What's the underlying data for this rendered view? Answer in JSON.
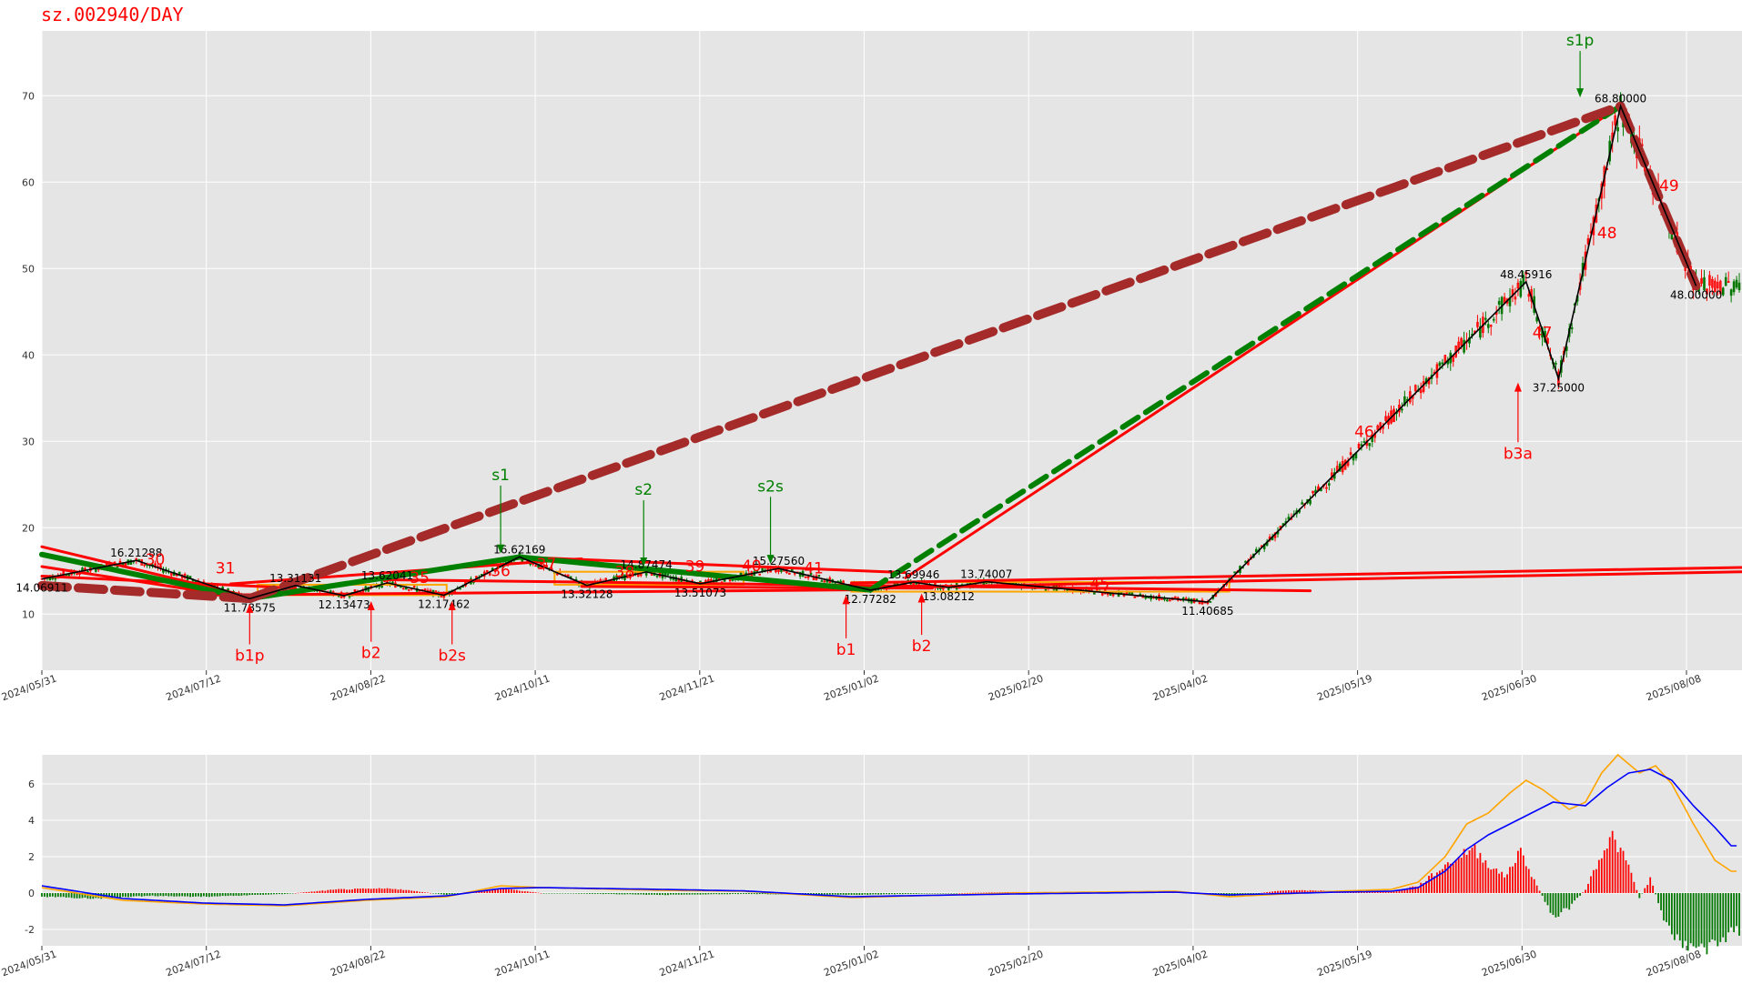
{
  "title": "sz.002940/DAY",
  "colors": {
    "up": "#ff0000",
    "down": "#007700",
    "pen": "#000000",
    "seg": "#ff0000",
    "greenseg": "#008000",
    "brown": "#a52a2a",
    "orange": "#ffa500",
    "dif": "#ffa500",
    "dea": "#0000ff",
    "grid_bg": "#e5e5e5"
  },
  "chart_data": [
    {
      "type": "candlestick",
      "name": "price",
      "x_ticks": [
        "2024/05/31",
        "2024/07/12",
        "2024/08/22",
        "2024/10/11",
        "2024/11/21",
        "2025/01/02",
        "2025/02/20",
        "2025/04/02",
        "2025/05/19",
        "2025/06/30",
        "2025/08/08"
      ],
      "y_ticks": [
        10,
        20,
        30,
        40,
        50,
        60,
        70
      ],
      "ylim": [
        3.5,
        77.5
      ],
      "pen_points": [
        {
          "t": 0,
          "v": 14.06911,
          "label": "14.06911"
        },
        {
          "t": 35,
          "v": 16.21288,
          "label": "16.21288"
        },
        {
          "t": 77,
          "v": 11.78575,
          "label": "11.78575"
        },
        {
          "t": 94,
          "v": 13.31131,
          "label": "13.31131"
        },
        {
          "t": 112,
          "v": 12.13473,
          "label": "12.13473"
        },
        {
          "t": 128,
          "v": 13.62041,
          "label": "13.62041"
        },
        {
          "t": 149,
          "v": 12.17462,
          "label": "12.17462"
        },
        {
          "t": 177,
          "v": 16.62169,
          "label": "16.62169"
        },
        {
          "t": 202,
          "v": 13.32128,
          "label": "13.32128"
        },
        {
          "t": 224,
          "v": 14.87474,
          "label": "14.87474"
        },
        {
          "t": 244,
          "v": 13.51073,
          "label": "13.51073"
        },
        {
          "t": 273,
          "v": 15.2756,
          "label": "15.27560"
        },
        {
          "t": 307,
          "v": 12.77282,
          "label": "12.77282"
        },
        {
          "t": 323,
          "v": 13.69946,
          "label": "13.69946"
        },
        {
          "t": 336,
          "v": 13.08212,
          "label": "13.08212"
        },
        {
          "t": 350,
          "v": 13.74007,
          "label": "13.74007"
        },
        {
          "t": 432,
          "v": 11.40685,
          "label": "11.40685"
        },
        {
          "t": 550,
          "v": 48.45916,
          "label": "48.45916"
        },
        {
          "t": 562,
          "v": 37.25,
          "label": "37.25000"
        },
        {
          "t": 585,
          "v": 68.8,
          "label": "68.80000"
        },
        {
          "t": 613,
          "v": 48.0,
          "label": "48.00000"
        }
      ],
      "segment_labels": [
        {
          "t": 42,
          "v": 15.7,
          "label": "30"
        },
        {
          "t": 68,
          "v": 14.7,
          "label": "31"
        },
        {
          "t": 140,
          "v": 13.6,
          "label": "35"
        },
        {
          "t": 170,
          "v": 14.4,
          "label": "36"
        },
        {
          "t": 187,
          "v": 15.2,
          "label": "37"
        },
        {
          "t": 216,
          "v": 14.3,
          "label": "38"
        },
        {
          "t": 242,
          "v": 14.9,
          "label": "39"
        },
        {
          "t": 263,
          "v": 15.0,
          "label": "40"
        },
        {
          "t": 286,
          "v": 14.7,
          "label": "41"
        },
        {
          "t": 392,
          "v": 12.9,
          "label": "45"
        },
        {
          "t": 490,
          "v": 30.5,
          "label": "46"
        },
        {
          "t": 556,
          "v": 42.0,
          "label": "47"
        },
        {
          "t": 580,
          "v": 53.5,
          "label": "48"
        },
        {
          "t": 603,
          "v": 59.0,
          "label": "49"
        }
      ],
      "signals": [
        {
          "t": 77,
          "label": "b1p",
          "kind": "buy",
          "price": 11.2,
          "text_v": 4.6
        },
        {
          "t": 122,
          "label": "b2",
          "kind": "buy",
          "price": 11.5,
          "text_v": 4.9
        },
        {
          "t": 152,
          "label": "b2s",
          "kind": "buy",
          "price": 11.5,
          "text_v": 4.6
        },
        {
          "t": 298,
          "label": "b1",
          "kind": "buy",
          "price": 12.2,
          "text_v": 5.3
        },
        {
          "t": 326,
          "label": "b2",
          "kind": "buy",
          "price": 12.4,
          "text_v": 5.7
        },
        {
          "t": 547,
          "label": "b3a",
          "kind": "buy",
          "price": 36.8,
          "text_v": 28.0
        },
        {
          "t": 170,
          "label": "s1",
          "kind": "sell",
          "price": 17.0,
          "text_v": 25.5
        },
        {
          "t": 223,
          "label": "s2",
          "kind": "sell",
          "price": 15.5,
          "text_v": 23.8
        },
        {
          "t": 270,
          "label": "s2s",
          "kind": "sell",
          "price": 15.8,
          "text_v": 24.2
        },
        {
          "t": 570,
          "label": "s1p",
          "kind": "sell",
          "price": 69.8,
          "text_v": 75.8
        }
      ]
    },
    {
      "type": "macd",
      "name": "indicator",
      "x_ticks": [
        "2024/05/31",
        "2024/07/12",
        "2024/08/22",
        "2024/10/11",
        "2024/11/21",
        "2025/01/02",
        "2025/02/20",
        "2025/04/02",
        "2025/05/19",
        "2025/06/30",
        "2025/08/08"
      ],
      "y_ticks": [
        -2,
        0,
        2,
        4,
        6
      ],
      "ylim": [
        -2.9,
        7.6
      ],
      "dif_knots": [
        [
          0,
          0.3
        ],
        [
          30,
          -0.4
        ],
        [
          60,
          -0.6
        ],
        [
          90,
          -0.7
        ],
        [
          120,
          -0.4
        ],
        [
          150,
          -0.2
        ],
        [
          170,
          0.4
        ],
        [
          185,
          0.3
        ],
        [
          230,
          0.15
        ],
        [
          260,
          0.1
        ],
        [
          300,
          -0.25
        ],
        [
          360,
          0.0
        ],
        [
          420,
          0.1
        ],
        [
          440,
          -0.2
        ],
        [
          480,
          0.1
        ],
        [
          500,
          0.2
        ],
        [
          510,
          0.6
        ],
        [
          520,
          2.0
        ],
        [
          528,
          3.8
        ],
        [
          536,
          4.4
        ],
        [
          544,
          5.5
        ],
        [
          550,
          6.2
        ],
        [
          556,
          5.7
        ],
        [
          566,
          4.6
        ],
        [
          572,
          5.0
        ],
        [
          578,
          6.6
        ],
        [
          584,
          7.6
        ],
        [
          592,
          6.6
        ],
        [
          598,
          7.0
        ],
        [
          604,
          6.0
        ],
        [
          612,
          3.8
        ],
        [
          620,
          1.8
        ],
        [
          626,
          1.2
        ]
      ],
      "dea_knots": [
        [
          0,
          0.4
        ],
        [
          30,
          -0.3
        ],
        [
          60,
          -0.55
        ],
        [
          90,
          -0.65
        ],
        [
          120,
          -0.35
        ],
        [
          150,
          -0.15
        ],
        [
          170,
          0.25
        ],
        [
          185,
          0.3
        ],
        [
          230,
          0.2
        ],
        [
          260,
          0.12
        ],
        [
          300,
          -0.2
        ],
        [
          360,
          -0.05
        ],
        [
          420,
          0.05
        ],
        [
          440,
          -0.1
        ],
        [
          480,
          0.05
        ],
        [
          500,
          0.1
        ],
        [
          510,
          0.3
        ],
        [
          520,
          1.2
        ],
        [
          528,
          2.4
        ],
        [
          536,
          3.2
        ],
        [
          544,
          3.8
        ],
        [
          552,
          4.4
        ],
        [
          560,
          5.0
        ],
        [
          572,
          4.8
        ],
        [
          580,
          5.8
        ],
        [
          588,
          6.6
        ],
        [
          596,
          6.8
        ],
        [
          604,
          6.2
        ],
        [
          612,
          4.8
        ],
        [
          620,
          3.6
        ],
        [
          626,
          2.6
        ]
      ],
      "hist_knots": [
        [
          0,
          -0.2
        ],
        [
          20,
          -0.3
        ],
        [
          40,
          -0.15
        ],
        [
          60,
          -0.2
        ],
        [
          90,
          -0.05
        ],
        [
          110,
          0.2
        ],
        [
          130,
          0.25
        ],
        [
          150,
          -0.1
        ],
        [
          170,
          0.25
        ],
        [
          185,
          0.0
        ],
        [
          230,
          -0.1
        ],
        [
          260,
          -0.05
        ],
        [
          300,
          -0.1
        ],
        [
          360,
          0.05
        ],
        [
          420,
          0.05
        ],
        [
          440,
          -0.2
        ],
        [
          460,
          0.15
        ],
        [
          500,
          0.1
        ],
        [
          510,
          0.4
        ],
        [
          520,
          1.5
        ],
        [
          530,
          2.5
        ],
        [
          536,
          1.6
        ],
        [
          542,
          0.9
        ],
        [
          548,
          2.3
        ],
        [
          554,
          0.4
        ],
        [
          560,
          -1.3
        ],
        [
          566,
          -0.8
        ],
        [
          572,
          0.2
        ],
        [
          578,
          2.2
        ],
        [
          582,
          3.1
        ],
        [
          588,
          1.5
        ],
        [
          592,
          -0.3
        ],
        [
          596,
          0.8
        ],
        [
          602,
          -1.8
        ],
        [
          610,
          -3.0
        ],
        [
          620,
          -3.0
        ],
        [
          626,
          -2.1
        ]
      ]
    }
  ]
}
